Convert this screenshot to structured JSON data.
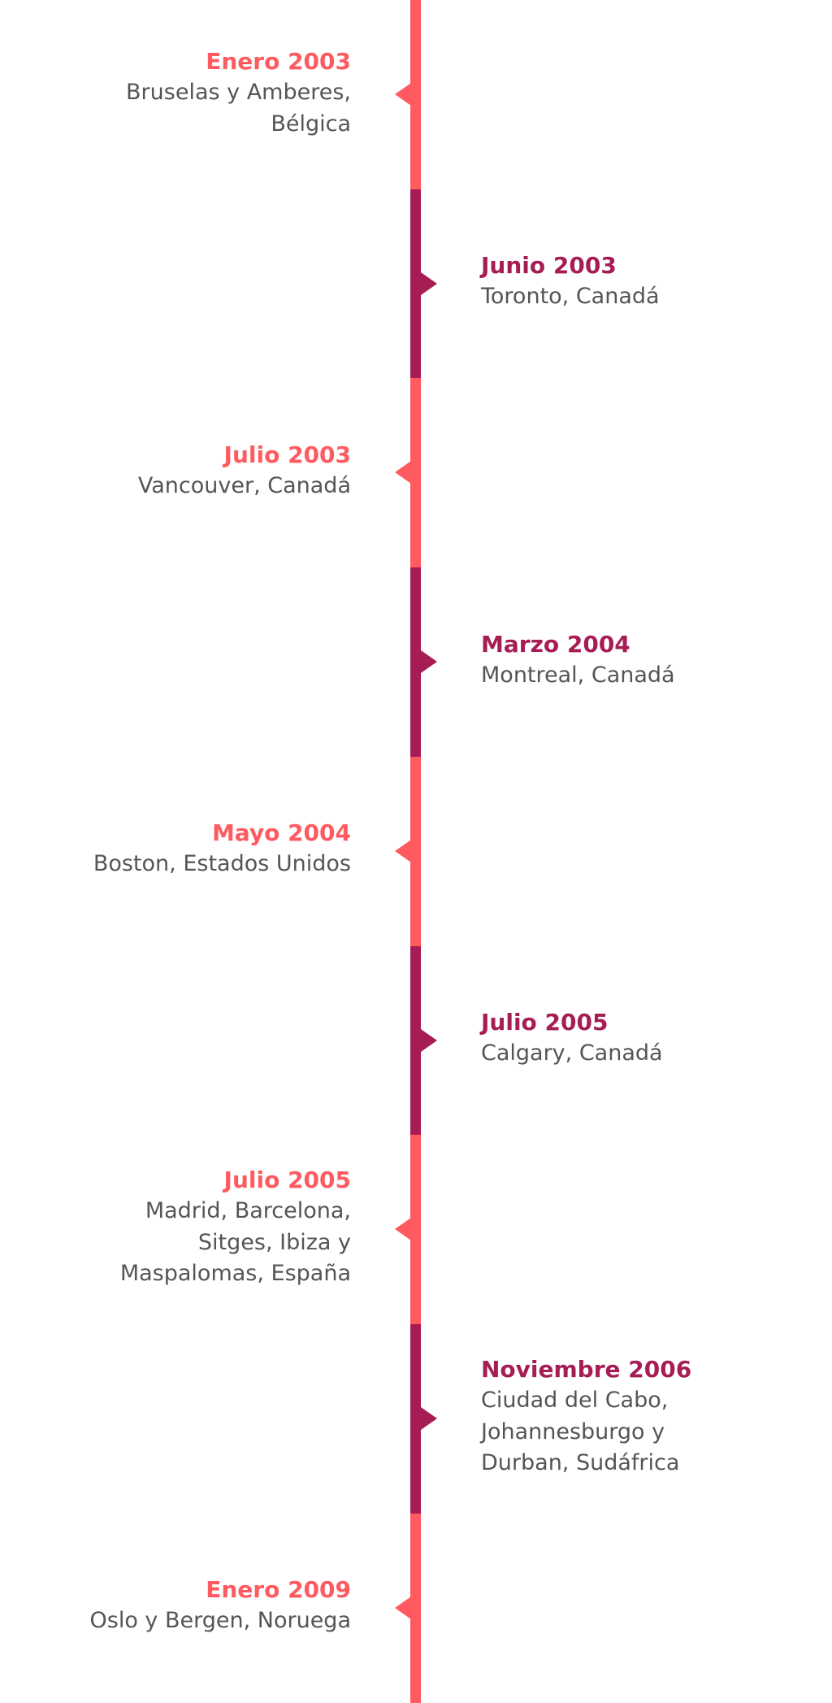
{
  "colors": {
    "coral": "#ff5a5f",
    "plum": "#a61d55",
    "text_gray": "#555555"
  },
  "timeline": {
    "entries": [
      {
        "date": "Enero 2003",
        "place": "Bruselas y Amberes, Bélgica",
        "side": "left",
        "color": "#ff5a5f"
      },
      {
        "date": "Junio 2003",
        "place": "Toronto, Canadá",
        "side": "right",
        "color": "#a61d55"
      },
      {
        "date": "Julio 2003",
        "place": "Vancouver, Canadá",
        "side": "left",
        "color": "#ff5a5f"
      },
      {
        "date": "Marzo 2004",
        "place": "Montreal, Canadá",
        "side": "right",
        "color": "#a61d55"
      },
      {
        "date": "Mayo 2004",
        "place": "Boston, Estados Unidos",
        "side": "left",
        "color": "#ff5a5f"
      },
      {
        "date": "Julio 2005",
        "place": "Calgary, Canadá",
        "side": "right",
        "color": "#a61d55"
      },
      {
        "date": "Julio 2005",
        "place": "Madrid, Barcelona, Sitges, Ibiza y Maspalomas, España",
        "side": "left",
        "color": "#ff5a5f"
      },
      {
        "date": "Noviembre 2006",
        "place": "Ciudad del Cabo, Johannesburgo y Durban, Sudáfrica",
        "side": "right",
        "color": "#a61d55"
      },
      {
        "date": "Enero 2009",
        "place": "Oslo y Bergen, Noruega",
        "side": "left",
        "color": "#ff5a5f"
      }
    ]
  }
}
